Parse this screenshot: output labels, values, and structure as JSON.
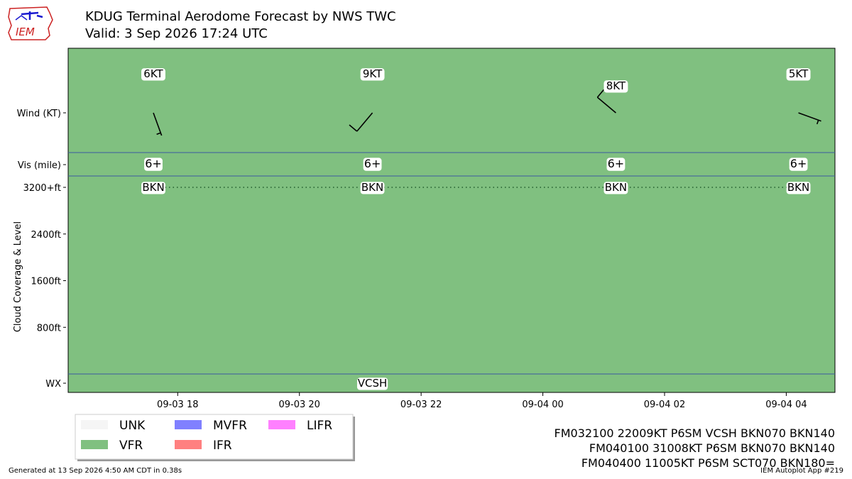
{
  "header": {
    "title": "KDUG Terminal Aerodome Forecast by NWS TWC",
    "valid": "Valid: 3 Sep 2026 17:24 UTC",
    "logo_text": "IEM"
  },
  "footer": {
    "generated": "Generated at 13 Sep 2026 4:50 AM CDT in 0.38s",
    "app": "IEM Autoplot App #219"
  },
  "raw_taf": [
    "FM032100 22009KT P6SM VCSH BKN070 BKN140",
    "FM040100 31008KT P6SM BKN070 BKN140",
    "FM040400 11005KT P6SM SCT070 BKN180="
  ],
  "colors": {
    "VFR": "#80c080",
    "UNK": "#f5f5f5",
    "MVFR": "#8080ff",
    "IFR": "#ff8080",
    "LIFR": "#ff80ff",
    "divider": "#3c5aa0"
  },
  "chart_data": {
    "type": "timeline",
    "x_unit": "hours after 2026-09-03 17:00 UTC",
    "xlim": [
      -0.8,
      11.8
    ],
    "xticks": [
      {
        "x": 1,
        "label": "09-03 18"
      },
      {
        "x": 3,
        "label": "09-03 20"
      },
      {
        "x": 5,
        "label": "09-03 22"
      },
      {
        "x": 7,
        "label": "09-04 00"
      },
      {
        "x": 9,
        "label": "09-04 02"
      },
      {
        "x": 11,
        "label": "09-04 04"
      }
    ],
    "rows": {
      "wind": "Wind (KT)",
      "vis": "Vis (mile)",
      "wx": "WX"
    },
    "cloud_axis": {
      "label": "Cloud Coverage & Level",
      "ticks": [
        {
          "ft": 800,
          "label": "800ft"
        },
        {
          "ft": 1600,
          "label": "1600ft"
        },
        {
          "ft": 2400,
          "label": "2400ft"
        },
        {
          "ft": 3200,
          "label": "3200+ft"
        }
      ]
    },
    "forecasts": [
      {
        "x": 0.6,
        "wind_dir": 160,
        "wind_kt": 6,
        "wind_label": "6KT",
        "vis": "6+",
        "cloud": "BKN",
        "cloud_ft": 3200,
        "category": "VFR"
      },
      {
        "x": 4.2,
        "wind_dir": 220,
        "wind_kt": 9,
        "wind_label": "9KT",
        "vis": "6+",
        "cloud": "BKN",
        "cloud_ft": 3200,
        "category": "VFR"
      },
      {
        "x": 8.2,
        "wind_dir": 310,
        "wind_kt": 8,
        "wind_label": "8KT",
        "vis": "6+",
        "cloud": "BKN",
        "cloud_ft": 3200,
        "category": "VFR"
      },
      {
        "x": 11.2,
        "wind_dir": 110,
        "wind_kt": 5,
        "wind_label": "5KT",
        "vis": "6+",
        "cloud": "BKN",
        "cloud_ft": 3200,
        "category": "VFR"
      }
    ],
    "weather": [
      {
        "x": 4.2,
        "label": "VCSH"
      }
    ],
    "legend": [
      {
        "label": "UNK",
        "key": "UNK"
      },
      {
        "label": "MVFR",
        "key": "MVFR"
      },
      {
        "label": "LIFR",
        "key": "LIFR"
      },
      {
        "label": "VFR",
        "key": "VFR"
      },
      {
        "label": "IFR",
        "key": "IFR"
      }
    ]
  }
}
